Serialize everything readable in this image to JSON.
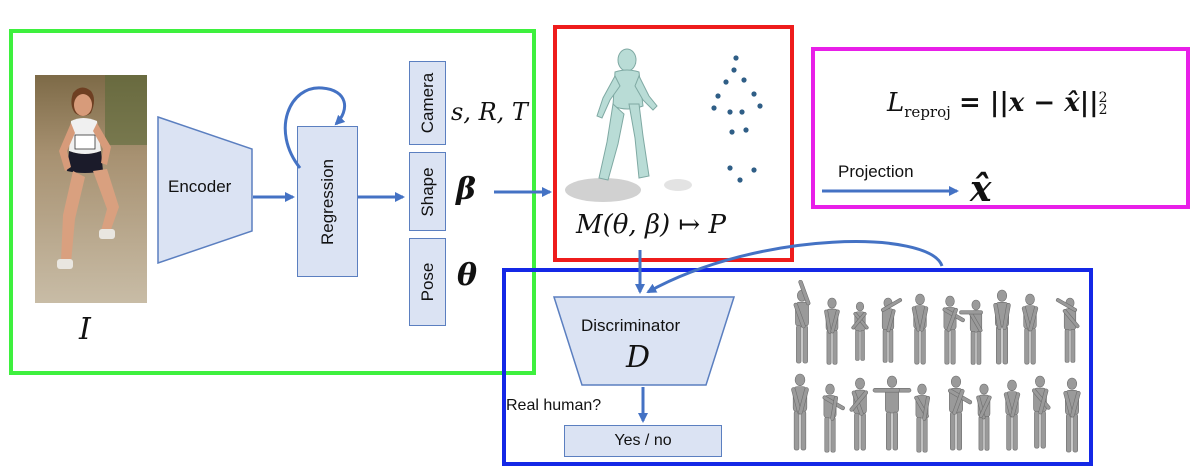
{
  "encoder": {
    "label": "Encoder"
  },
  "image_symbol": "I",
  "regression": {
    "label": "Regression"
  },
  "params": {
    "camera_label": "Camera",
    "shape_label": "Shape",
    "pose_label": "Pose",
    "camera_symbol": "s, R, T",
    "shape_symbol": "β",
    "pose_symbol": "θ"
  },
  "smpl": {
    "formula": "M(θ, β) ↦ P"
  },
  "reprojection": {
    "loss_symbol": "L",
    "loss_subscript": "reproj",
    "loss_rhs": "= ||x − x̂||",
    "norm_sub": "2",
    "norm_sup": "2",
    "projection_label": "Projection",
    "x_hat": "x̂"
  },
  "discriminator": {
    "label": "Discriminator",
    "symbol": "D",
    "question": "Real human?",
    "answer": "Yes / no"
  },
  "colors": {
    "green_frame": "#3ef03e",
    "red_frame": "#ee1c1c",
    "magenta_frame": "#e81fe8",
    "blue_frame": "#1428e6",
    "arrow": "#4472c4",
    "box_fill": "#dbe3f3"
  }
}
